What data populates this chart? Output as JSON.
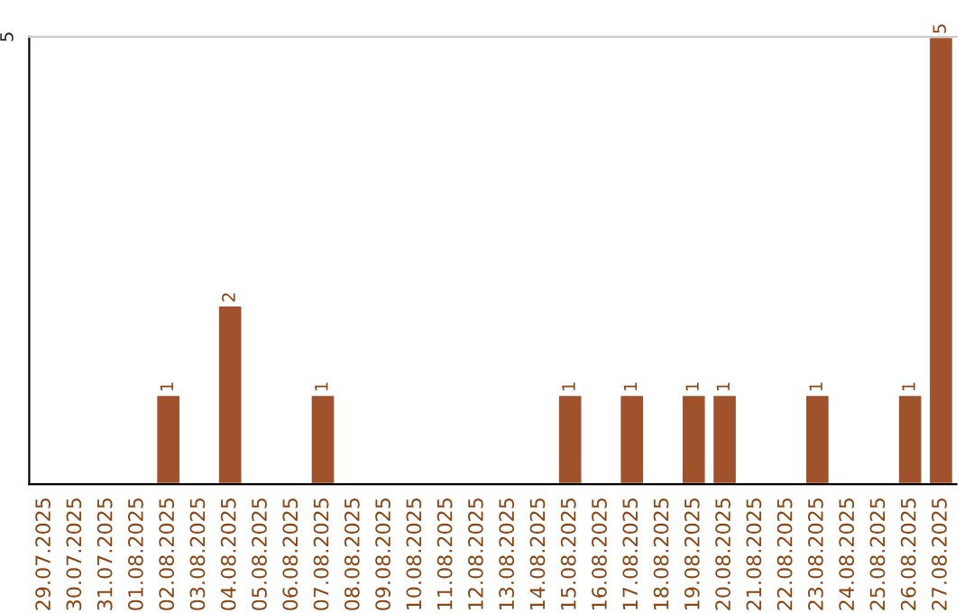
{
  "chart_data": {
    "type": "bar",
    "categories": [
      "29.07.2025",
      "30.07.2025",
      "31.07.2025",
      "01.08.2025",
      "02.08.2025",
      "03.08.2025",
      "04.08.2025",
      "05.08.2025",
      "06.08.2025",
      "07.08.2025",
      "08.08.2025",
      "09.08.2025",
      "10.08.2025",
      "11.08.2025",
      "12.08.2025",
      "13.08.2025",
      "14.08.2025",
      "15.08.2025",
      "16.08.2025",
      "17.08.2025",
      "18.08.2025",
      "19.08.2025",
      "20.08.2025",
      "21.08.2025",
      "22.08.2025",
      "23.08.2025",
      "24.08.2025",
      "25.08.2025",
      "26.08.2025",
      "27.08.2025"
    ],
    "values": [
      null,
      null,
      null,
      null,
      1,
      null,
      2,
      null,
      null,
      1,
      null,
      null,
      null,
      null,
      null,
      null,
      null,
      1,
      null,
      1,
      null,
      1,
      1,
      null,
      null,
      1,
      null,
      null,
      1,
      5
    ],
    "value_labels": [
      null,
      null,
      null,
      null,
      "1",
      null,
      "2",
      null,
      null,
      "1",
      null,
      null,
      null,
      null,
      null,
      null,
      null,
      "1",
      null,
      "1",
      null,
      "1",
      "1",
      null,
      null,
      "1",
      null,
      null,
      "1",
      "5"
    ],
    "color": "#a0522d",
    "ylim": [
      0,
      5
    ],
    "yticks": [
      5
    ],
    "legend": false
  }
}
